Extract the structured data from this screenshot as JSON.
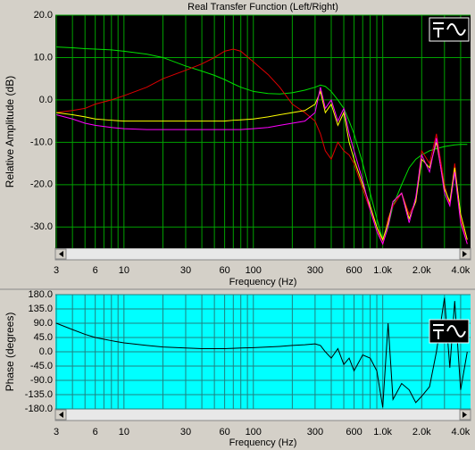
{
  "chart_data": [
    {
      "type": "line",
      "title": "Real Transfer Function (Left/Right)",
      "x_label": "Frequency (Hz)",
      "y_label": "Relative Amplitude (dB)",
      "xscale": "log",
      "xlim": [
        2.95,
        4770
      ],
      "ylim": [
        -35,
        20
      ],
      "background": "#000000",
      "grid": true,
      "grid_color": "#00a000",
      "xticks": [
        3,
        6,
        10,
        30,
        60,
        100,
        300,
        600,
        {
          "value": 1000,
          "label": "1.0k"
        },
        {
          "value": 2000,
          "label": "2.0k"
        },
        {
          "value": 4000,
          "label": "4.0k"
        }
      ],
      "xminorticks": [
        4,
        5,
        7,
        8,
        9,
        20,
        40,
        50,
        70,
        80,
        90,
        200,
        400,
        500,
        700,
        800,
        900,
        3000
      ],
      "yticks": [
        {
          "value": 20,
          "label": "20.0"
        },
        {
          "value": 10,
          "label": "10.0"
        },
        {
          "value": 0,
          "label": "0.0"
        },
        {
          "value": -10,
          "label": "-10.0"
        },
        {
          "value": -20,
          "label": "-20.0"
        },
        {
          "value": -30,
          "label": "-30.0"
        }
      ],
      "x": [
        3,
        4,
        5,
        6,
        8,
        10,
        15,
        20,
        30,
        40,
        50,
        60,
        70,
        80,
        100,
        130,
        160,
        200,
        250,
        300,
        330,
        360,
        400,
        450,
        500,
        550,
        600,
        700,
        800,
        900,
        1000,
        1100,
        1200,
        1400,
        1600,
        1800,
        2000,
        2300,
        2600,
        3000,
        3300,
        3600,
        4000,
        4500
      ],
      "series": [
        {
          "color": "#00e000",
          "values": [
            12.5,
            12.3,
            12.1,
            12,
            11.8,
            11.5,
            10.8,
            10,
            8,
            6.8,
            5.8,
            4.8,
            3.8,
            3,
            2,
            1.5,
            1.4,
            1.7,
            2.3,
            3,
            3.5,
            3.2,
            2,
            0,
            -2,
            -5,
            -8,
            -15,
            -22,
            -28,
            -33,
            -30,
            -25,
            -20,
            -16,
            -14,
            -13,
            -12,
            -11.5,
            -11,
            -10.8,
            -10.6,
            -10.5,
            -10.5
          ]
        },
        {
          "color": "#e00000",
          "values": [
            -3,
            -2.5,
            -2,
            -1,
            0,
            1,
            3,
            5,
            7,
            8.5,
            10,
            11.5,
            12,
            11.5,
            9,
            6,
            3,
            -1,
            -3,
            -5,
            -8,
            -12,
            -14,
            -10,
            -12,
            -13,
            -15,
            -21,
            -26,
            -30,
            -34,
            -28,
            -25,
            -22,
            -27,
            -24,
            -12,
            -15,
            -8,
            -20,
            -25,
            -15,
            -28,
            -34
          ]
        },
        {
          "color": "#ffff00",
          "values": [
            -3,
            -3.5,
            -4,
            -4.5,
            -4.8,
            -5,
            -5,
            -5,
            -5,
            -5,
            -5,
            -5,
            -4.8,
            -4.7,
            -4.5,
            -4,
            -3.5,
            -3,
            -2.5,
            -1,
            2,
            -3,
            -1,
            -6,
            -3,
            -10,
            -14,
            -20,
            -25,
            -30,
            -33,
            -29,
            -24,
            -22,
            -28,
            -24,
            -14,
            -16,
            -10,
            -21,
            -24,
            -16,
            -27,
            -33
          ]
        },
        {
          "color": "#ff00ff",
          "values": [
            -3.5,
            -4.5,
            -5.5,
            -6,
            -6.5,
            -6.8,
            -7,
            -7,
            -7,
            -7,
            -7,
            -7,
            -7,
            -7,
            -6.8,
            -6.5,
            -6,
            -5.5,
            -5,
            -3,
            3,
            -2,
            0,
            -5,
            -2,
            -8,
            -12,
            -19,
            -26,
            -31,
            -34,
            -30,
            -24,
            -22,
            -29,
            -23,
            -13,
            -17,
            -9,
            -22,
            -25,
            -17,
            -29,
            -34
          ]
        }
      ]
    },
    {
      "type": "line",
      "x_label": "Frequency (Hz)",
      "y_label": "Phase (degrees)",
      "xscale": "log",
      "xlim": [
        2.95,
        4770
      ],
      "ylim": [
        -180,
        180
      ],
      "background": "#00ffff",
      "grid": true,
      "grid_color": "#208080",
      "xticks": [
        3,
        6,
        10,
        30,
        60,
        100,
        300,
        600,
        {
          "value": 1000,
          "label": "1.0k"
        },
        {
          "value": 2000,
          "label": "2.0k"
        },
        {
          "value": 4000,
          "label": "4.0k"
        }
      ],
      "xminorticks": [
        4,
        5,
        7,
        8,
        9,
        20,
        40,
        50,
        70,
        80,
        90,
        200,
        400,
        500,
        700,
        800,
        900,
        3000
      ],
      "yticks": [
        {
          "value": 180,
          "label": "180.0"
        },
        {
          "value": 135,
          "label": "135.0"
        },
        {
          "value": 90,
          "label": "90.0"
        },
        {
          "value": 45,
          "label": "45.0"
        },
        {
          "value": 0,
          "label": "0.0"
        },
        {
          "value": -45,
          "label": "-45.0"
        },
        {
          "value": -90,
          "label": "-90.0"
        },
        {
          "value": -135,
          "label": "-135.0"
        },
        {
          "value": -180,
          "label": "-180.0"
        }
      ],
      "x": [
        3,
        4,
        5,
        6,
        8,
        10,
        15,
        20,
        30,
        40,
        50,
        60,
        70,
        80,
        100,
        130,
        160,
        200,
        250,
        300,
        330,
        360,
        400,
        450,
        500,
        550,
        600,
        700,
        800,
        900,
        1000,
        1100,
        1200,
        1400,
        1600,
        1800,
        2000,
        2300,
        2600,
        3000,
        3300,
        3600,
        4000,
        4500
      ],
      "series": [
        {
          "color": "#000000",
          "values": [
            90,
            70,
            55,
            45,
            35,
            28,
            20,
            15,
            12,
            10,
            10,
            10,
            11,
            12,
            13,
            15,
            17,
            20,
            22,
            25,
            20,
            0,
            -20,
            10,
            -40,
            -20,
            -60,
            -10,
            -20,
            -60,
            -175,
            90,
            -150,
            -100,
            -120,
            -160,
            -140,
            -110,
            0,
            170,
            -50,
            160,
            -120,
            0
          ]
        }
      ]
    }
  ]
}
